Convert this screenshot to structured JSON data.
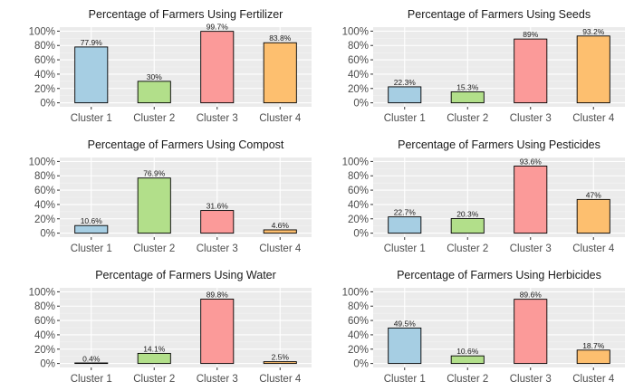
{
  "colors": {
    "panel_bg": "#ebebeb",
    "grid_major": "#ffffff",
    "grid_minor": "#f4f4f4",
    "bar_outline": "#000000",
    "cluster_fills": [
      "#a6cee3",
      "#b2df8a",
      "#fb9a99",
      "#fdbf6f"
    ]
  },
  "chart_data": [
    {
      "type": "bar",
      "title": "Percentage of Farmers Using Fertilizer",
      "categories": [
        "Cluster 1",
        "Cluster 2",
        "Cluster 3",
        "Cluster 4"
      ],
      "values": [
        77.9,
        30,
        99.7,
        83.8
      ],
      "labels": [
        "77.9%",
        "30%",
        "99.7%",
        "83.8%"
      ],
      "ylim": [
        0,
        100
      ],
      "yticks": [
        "0%",
        "20%",
        "40%",
        "60%",
        "80%",
        "100%"
      ],
      "grid": true
    },
    {
      "type": "bar",
      "title": "Percentage of Farmers Using Seeds",
      "categories": [
        "Cluster 1",
        "Cluster 2",
        "Cluster 3",
        "Cluster 4"
      ],
      "values": [
        22.3,
        15.3,
        89,
        93.2
      ],
      "labels": [
        "22.3%",
        "15.3%",
        "89%",
        "93.2%"
      ],
      "ylim": [
        0,
        100
      ],
      "yticks": [
        "0%",
        "20%",
        "40%",
        "60%",
        "80%",
        "100%"
      ],
      "grid": true
    },
    {
      "type": "bar",
      "title": "Percentage of Farmers Using Compost",
      "categories": [
        "Cluster 1",
        "Cluster 2",
        "Cluster 3",
        "Cluster 4"
      ],
      "values": [
        10.6,
        76.9,
        31.6,
        4.6
      ],
      "labels": [
        "10.6%",
        "76.9%",
        "31.6%",
        "4.6%"
      ],
      "ylim": [
        0,
        100
      ],
      "yticks": [
        "0%",
        "20%",
        "40%",
        "60%",
        "80%",
        "100%"
      ],
      "grid": true
    },
    {
      "type": "bar",
      "title": "Percentage of Farmers Using Pesticides",
      "categories": [
        "Cluster 1",
        "Cluster 2",
        "Cluster 3",
        "Cluster 4"
      ],
      "values": [
        22.7,
        20.3,
        93.6,
        47
      ],
      "labels": [
        "22.7%",
        "20.3%",
        "93.6%",
        "47%"
      ],
      "ylim": [
        0,
        100
      ],
      "yticks": [
        "0%",
        "20%",
        "40%",
        "60%",
        "80%",
        "100%"
      ],
      "grid": true
    },
    {
      "type": "bar",
      "title": "Percentage of Farmers Using Water",
      "categories": [
        "Cluster 1",
        "Cluster 2",
        "Cluster 3",
        "Cluster 4"
      ],
      "values": [
        0.4,
        14.1,
        89.8,
        2.5
      ],
      "labels": [
        "0.4%",
        "14.1%",
        "89.8%",
        "2.5%"
      ],
      "ylim": [
        0,
        100
      ],
      "yticks": [
        "0%",
        "20%",
        "40%",
        "60%",
        "80%",
        "100%"
      ],
      "grid": true
    },
    {
      "type": "bar",
      "title": "Percentage of Farmers Using Herbicides",
      "categories": [
        "Cluster 1",
        "Cluster 2",
        "Cluster 3",
        "Cluster 4"
      ],
      "values": [
        49.5,
        10.6,
        89.6,
        18.7
      ],
      "labels": [
        "49.5%",
        "10.6%",
        "89.6%",
        "18.7%"
      ],
      "ylim": [
        0,
        100
      ],
      "yticks": [
        "0%",
        "20%",
        "40%",
        "60%",
        "80%",
        "100%"
      ],
      "grid": true
    }
  ]
}
